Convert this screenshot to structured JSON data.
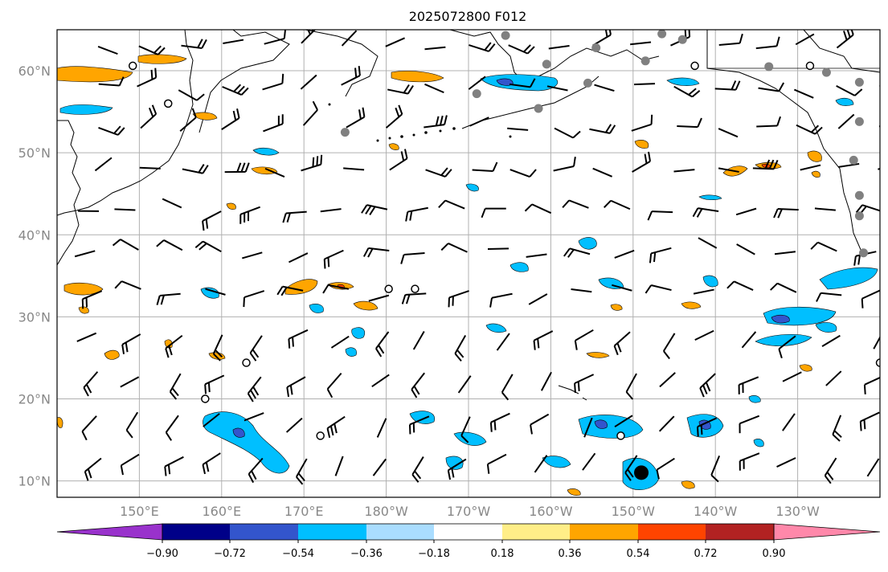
{
  "title": "2025072800 F012",
  "map": {
    "lat_range": [
      8,
      65
    ],
    "lon_range": [
      140,
      240
    ],
    "lat_labels": [
      "10°N",
      "20°N",
      "30°N",
      "40°N",
      "50°N",
      "60°N"
    ],
    "lat_values": [
      10,
      20,
      30,
      40,
      50,
      60
    ],
    "lon_labels": [
      "150°E",
      "160°E",
      "170°E",
      "180°W",
      "170°W",
      "160°W",
      "150°W",
      "140°W",
      "130°W"
    ],
    "lon_values": [
      150,
      160,
      170,
      180,
      190,
      200,
      210,
      220,
      230
    ],
    "stations_gray": [
      {
        "lat": 64.3,
        "lon": 194.5
      },
      {
        "lat": 64.5,
        "lon": 213.5
      },
      {
        "lat": 63.8,
        "lon": 216
      },
      {
        "lat": 62.8,
        "lon": 205.5
      },
      {
        "lat": 61.2,
        "lon": 211.5
      },
      {
        "lat": 60.8,
        "lon": 199.5
      },
      {
        "lat": 60.5,
        "lon": 226.5
      },
      {
        "lat": 59.8,
        "lon": 233.5
      },
      {
        "lat": 58.5,
        "lon": 204.5
      },
      {
        "lat": 58.6,
        "lon": 237.5
      },
      {
        "lat": 57.2,
        "lon": 191
      },
      {
        "lat": 55.4,
        "lon": 198.5
      },
      {
        "lat": 53.8,
        "lon": 237.5
      },
      {
        "lat": 52.5,
        "lon": 175
      },
      {
        "lat": 49.1,
        "lon": 236.8
      },
      {
        "lat": 44.8,
        "lon": 237.5
      },
      {
        "lat": 42.3,
        "lon": 237.5
      },
      {
        "lat": 37.8,
        "lon": 238
      }
    ],
    "stations_open": [
      {
        "lat": 60.6,
        "lon": 149.2
      },
      {
        "lat": 56,
        "lon": 153.5
      },
      {
        "lat": 60.6,
        "lon": 217.5
      },
      {
        "lat": 60.6,
        "lon": 231.5
      },
      {
        "lat": 33.4,
        "lon": 183.5
      },
      {
        "lat": 33.4,
        "lon": 180.3
      },
      {
        "lat": 24.4,
        "lon": 163
      },
      {
        "lat": 20,
        "lon": 158
      },
      {
        "lat": 15.5,
        "lon": 172
      },
      {
        "lat": 15.5,
        "lon": 208.5
      },
      {
        "lat": 24.4,
        "lon": 240
      }
    ],
    "typhoon_marker": {
      "lat": 11,
      "lon": 211
    }
  },
  "colorbar": {
    "levels": [
      -0.9,
      -0.72,
      -0.54,
      -0.36,
      -0.18,
      0.18,
      0.36,
      0.54,
      0.72,
      0.9
    ],
    "tick_labels": [
      "−0.90",
      "−0.72",
      "−0.54",
      "−0.36",
      "−0.18",
      "0.18",
      "0.36",
      "0.54",
      "0.72",
      "0.90"
    ],
    "under_color": "#9932cc",
    "over_color": "#ff88aa",
    "colors": [
      "#000088",
      "#3355cc",
      "#00bfff",
      "#aaddff",
      "#ffffff",
      "#ffee88",
      "#ffa500",
      "#ff4400",
      "#b22222"
    ]
  }
}
